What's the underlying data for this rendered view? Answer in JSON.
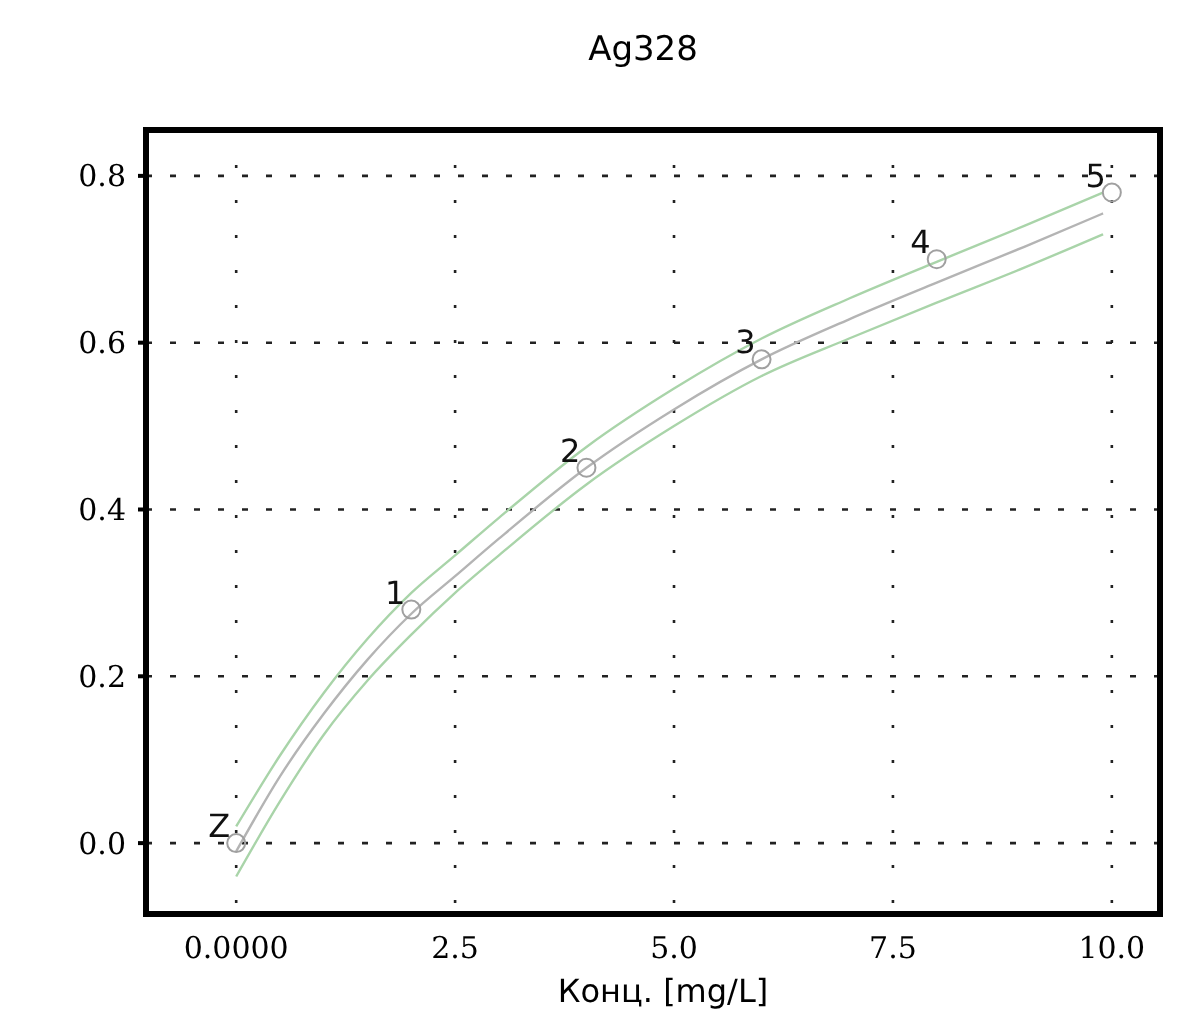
{
  "chart_data": {
    "type": "scatter",
    "title": "Ag328",
    "xlabel": "Конц. [mg/L]",
    "xlim": [
      -1.03,
      10.55
    ],
    "ylim": [
      -0.085,
      0.855
    ],
    "xticks": [
      {
        "value": 0,
        "label": "0.0000"
      },
      2.5,
      {
        "value": 5,
        "label": "5.0"
      },
      7.5,
      {
        "value": 10,
        "label": "10.0"
      }
    ],
    "yticks": [
      {
        "value": 0,
        "label": "0.0"
      },
      0.2,
      0.4,
      0.6,
      0.8
    ],
    "grid": true,
    "series": [
      {
        "type": "line",
        "color": "#b4b4b4",
        "marker": "none",
        "line_style": "solid",
        "x": [
          0,
          0.5,
          1,
          1.5,
          2,
          2.5,
          3,
          4,
          5,
          6,
          7,
          8,
          9,
          9.9
        ],
        "values": [
          -0.01,
          0.08,
          0.155,
          0.22,
          0.275,
          0.32,
          0.365,
          0.45,
          0.52,
          0.58,
          0.628,
          0.672,
          0.715,
          0.755
        ]
      },
      {
        "type": "line",
        "color": "#a9d4a9",
        "marker": "none",
        "line_style": "solid",
        "x": [
          0,
          0.5,
          1,
          1.5,
          2,
          2.5,
          3,
          4,
          5,
          6,
          7,
          8,
          9,
          9.9
        ],
        "values": [
          0.02,
          0.105,
          0.18,
          0.245,
          0.3,
          0.345,
          0.39,
          0.475,
          0.545,
          0.605,
          0.653,
          0.697,
          0.74,
          0.78
        ]
      },
      {
        "type": "line",
        "color": "#a9d4a9",
        "marker": "none",
        "line_style": "solid",
        "x": [
          0,
          0.5,
          1,
          1.5,
          2,
          2.5,
          3,
          4,
          5,
          6,
          7,
          8,
          9,
          9.9
        ],
        "values": [
          -0.04,
          0.05,
          0.13,
          0.195,
          0.25,
          0.3,
          0.345,
          0.43,
          0.5,
          0.56,
          0.605,
          0.648,
          0.69,
          0.73
        ]
      },
      {
        "color": "#a0a0a0",
        "marker": "circle",
        "x": [
          0,
          2,
          4,
          6,
          8,
          10
        ],
        "values": [
          0.0,
          0.28,
          0.45,
          0.58,
          0.7,
          0.78
        ]
      }
    ],
    "annotations": [
      {
        "text": "Z",
        "x": 0,
        "y": 0.0
      },
      {
        "text": "1",
        "x": 2,
        "y": 0.28
      },
      {
        "text": "2",
        "x": 4,
        "y": 0.45
      },
      {
        "text": "3",
        "x": 6,
        "y": 0.58
      },
      {
        "text": "4",
        "x": 8,
        "y": 0.7
      },
      {
        "text": "5",
        "x": 10,
        "y": 0.78
      }
    ]
  }
}
